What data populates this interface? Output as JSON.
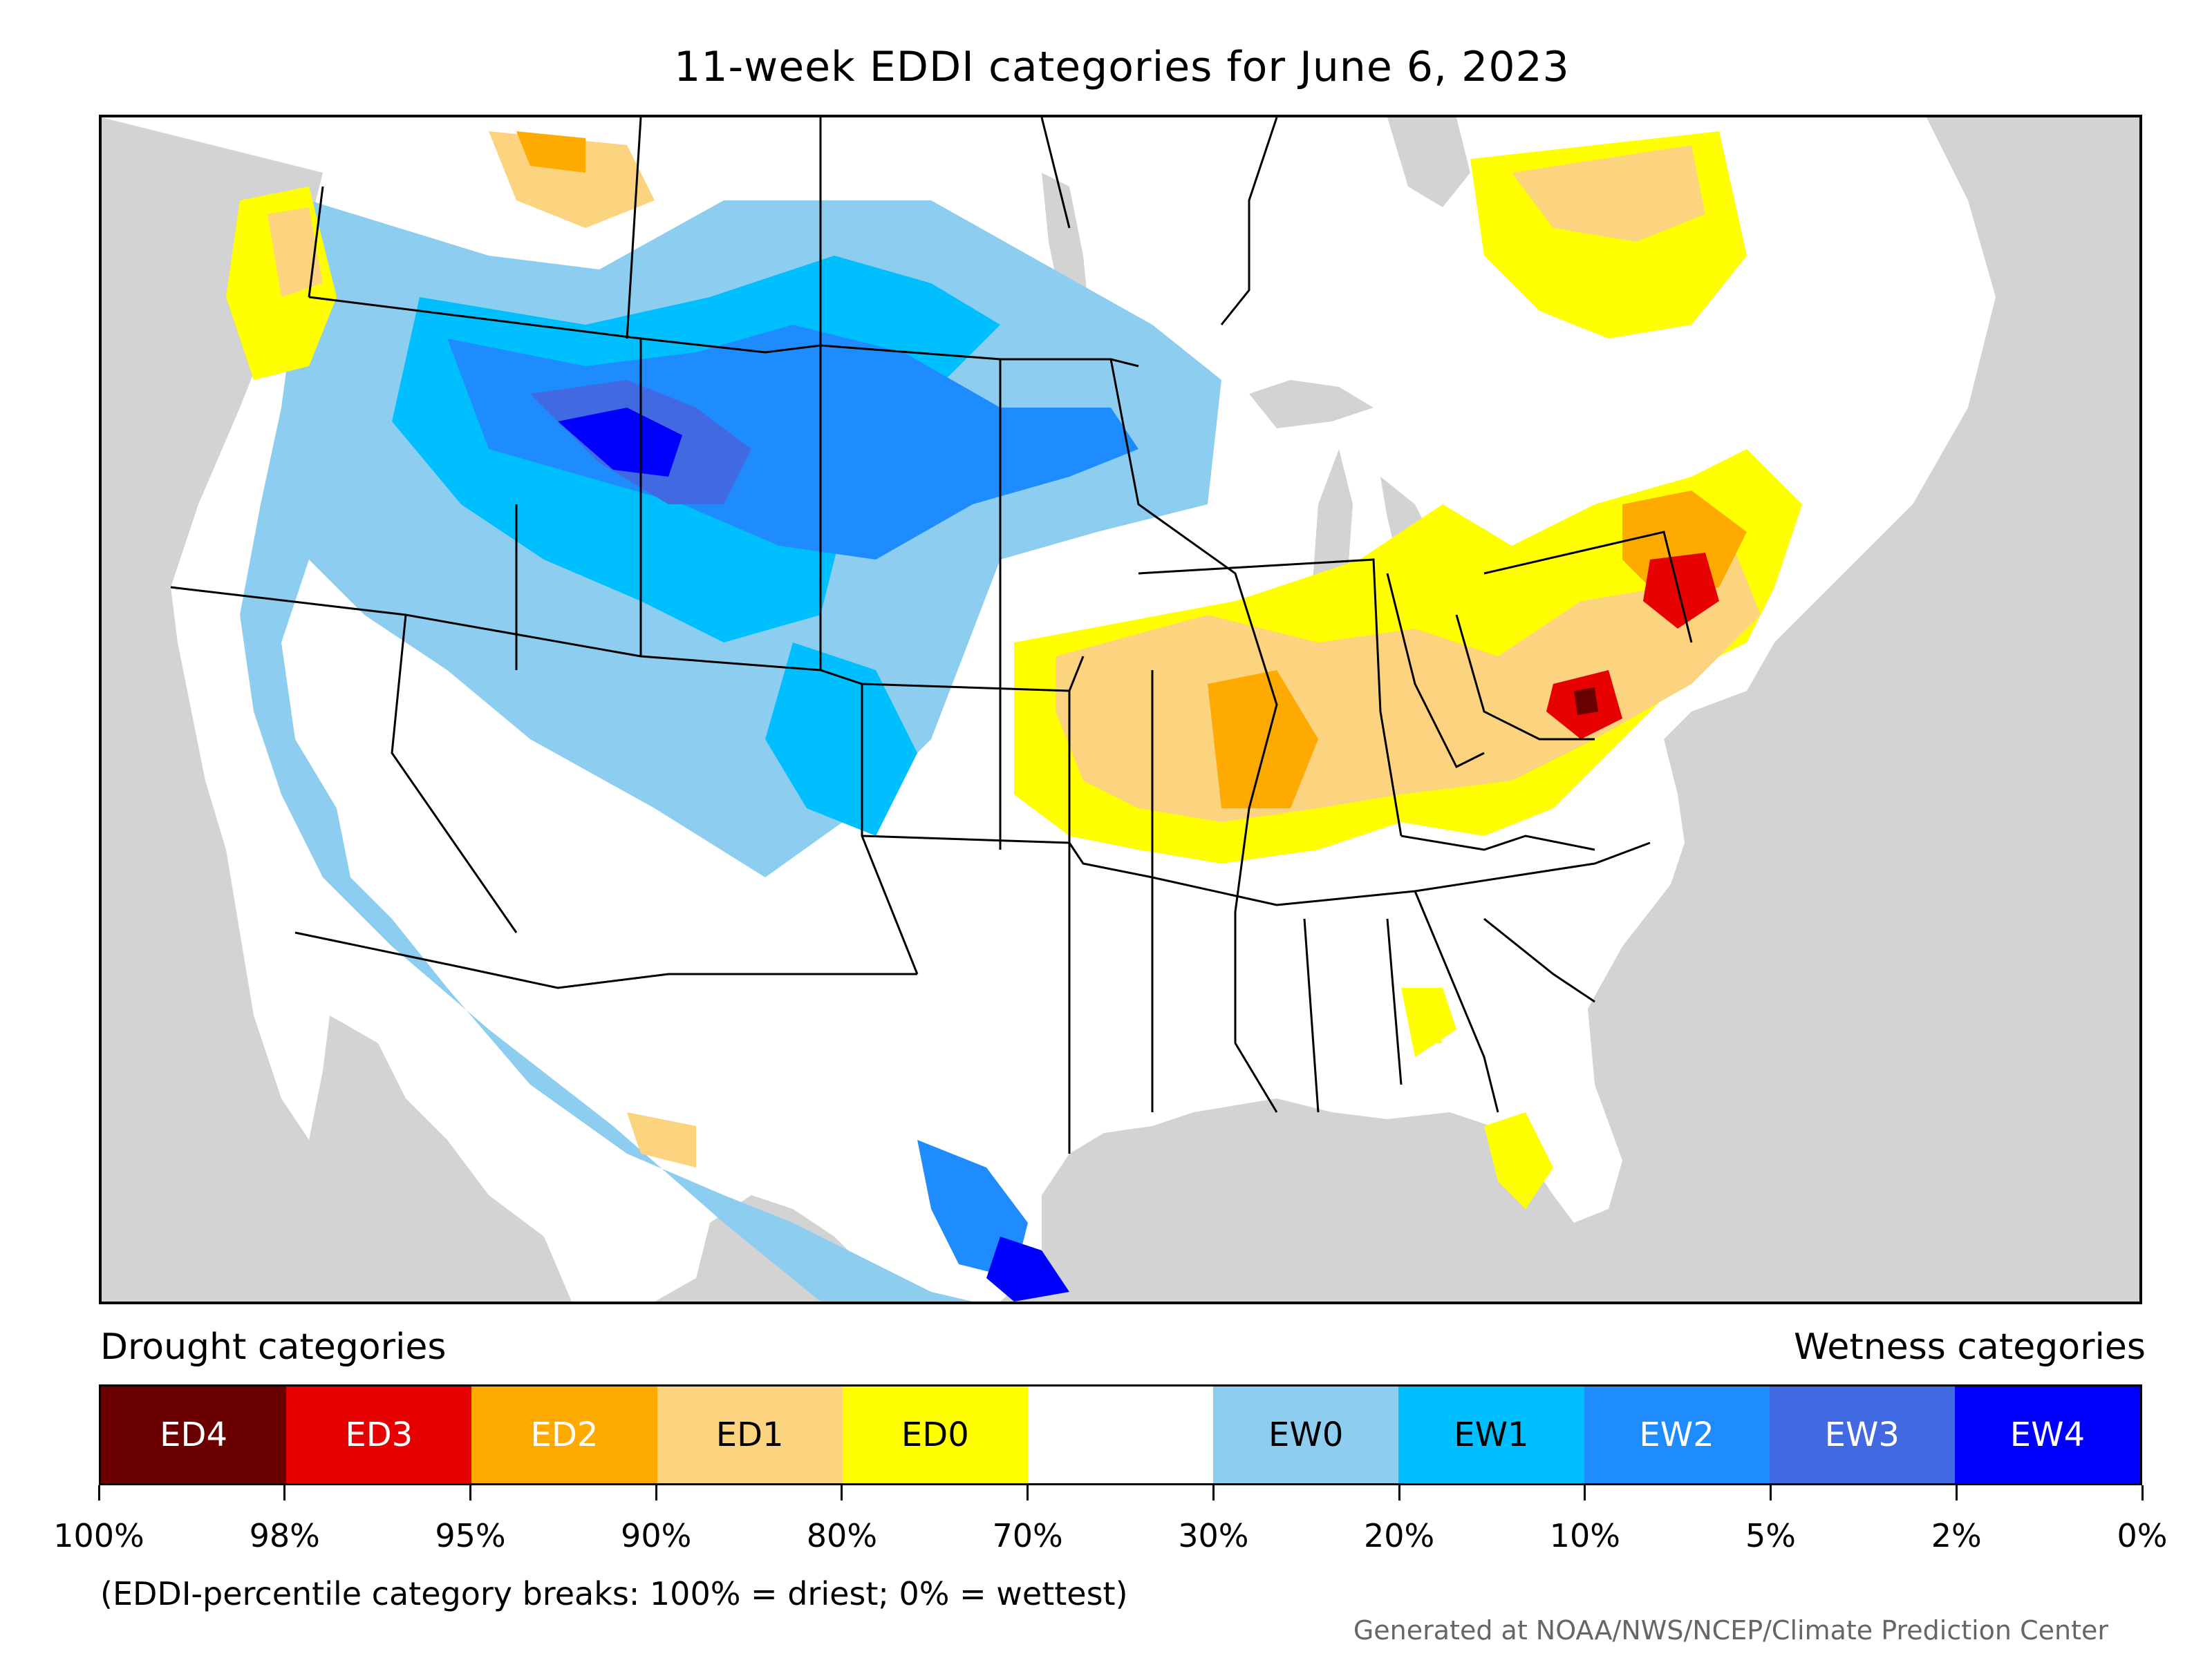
{
  "title": "11-week EDDI categories for June 6, 2023",
  "legend": {
    "drought_heading": "Drought categories",
    "wetness_heading": "Wetness categories",
    "categories": [
      {
        "label": "ED4",
        "color": "#6b0000",
        "text_color": "#ffffff"
      },
      {
        "label": "ED3",
        "color": "#e60000",
        "text_color": "#ffffff"
      },
      {
        "label": "ED2",
        "color": "#ffaa00",
        "text_color": "#ffffff"
      },
      {
        "label": "ED1",
        "color": "#fcd37f",
        "text_color": "#000000"
      },
      {
        "label": "ED0",
        "color": "#ffff00",
        "text_color": "#000000"
      },
      {
        "label": "",
        "color": "#ffffff",
        "text_color": "#000000"
      },
      {
        "label": "EW0",
        "color": "#8ccdf0",
        "text_color": "#000000"
      },
      {
        "label": "EW1",
        "color": "#00bfff",
        "text_color": "#000000"
      },
      {
        "label": "EW2",
        "color": "#1e8cff",
        "text_color": "#ffffff"
      },
      {
        "label": "EW3",
        "color": "#4169e1",
        "text_color": "#ffffff"
      },
      {
        "label": "EW4",
        "color": "#0000ff",
        "text_color": "#ffffff"
      }
    ],
    "breaks": [
      "100%",
      "98%",
      "95%",
      "90%",
      "80%",
      "70%",
      "30%",
      "20%",
      "10%",
      "5%",
      "2%",
      "0%"
    ]
  },
  "note": "(EDDI-percentile category breaks: 100% = driest; 0% = wettest)",
  "credit": "Generated at NOAA/NWS/NCEP/Climate Prediction Center",
  "map": {
    "background_color": "#d3d3d3",
    "land_color": "#ffffff",
    "border_color": "#000000"
  }
}
